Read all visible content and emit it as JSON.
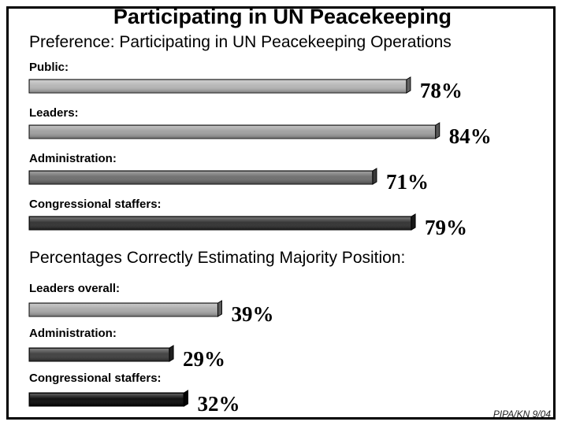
{
  "title": "Participating in UN Peacekeeping",
  "footer": "PIPA/KN 9/04",
  "chart_data": [
    {
      "type": "bar",
      "orientation": "horizontal",
      "title": "Preference:  Participating in UN Peacekeeping Operations",
      "categories": [
        "Public:",
        "Leaders:",
        "Administration:",
        "Congressional staffers:"
      ],
      "values": [
        78,
        84,
        71,
        79
      ],
      "value_labels": [
        "78%",
        "84%",
        "71%",
        "79%"
      ],
      "fill_colors": [
        "#b4b4b4",
        "#9e9e9e",
        "#6a6a6a",
        "#2c2c2c"
      ]
    },
    {
      "type": "bar",
      "orientation": "horizontal",
      "title": "Percentages Correctly Estimating Majority Position:",
      "categories": [
        "Leaders overall:",
        "Administration:",
        "Congressional staffers:"
      ],
      "values": [
        39,
        29,
        32
      ],
      "value_labels": [
        "39%",
        "29%",
        "32%"
      ],
      "fill_colors": [
        "#a8a8a8",
        "#3a3a3a",
        "#050505"
      ]
    }
  ]
}
